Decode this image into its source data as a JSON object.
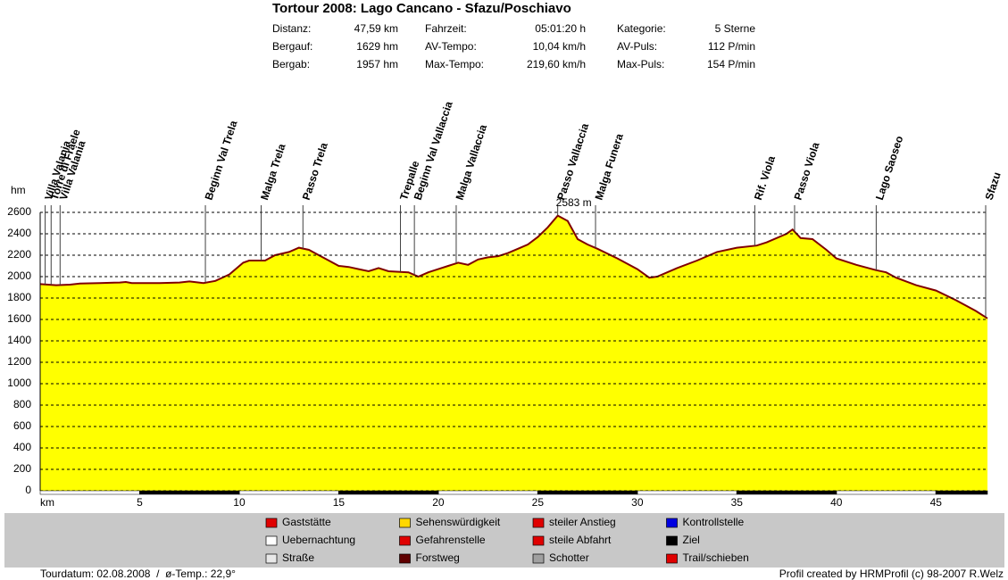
{
  "header": {
    "title": "Tortour 2008: Lago Cancano - Sfazu/Poschiavo",
    "stats": [
      {
        "label": "Distanz:",
        "value": "47,59 km"
      },
      {
        "label": "Fahrzeit:",
        "value": "05:01:20 h"
      },
      {
        "label": "Kategorie:",
        "value": "5 Sterne"
      },
      {
        "label": "Bergauf:",
        "value": "1629 hm"
      },
      {
        "label": "AV-Tempo:",
        "value": "10,04 km/h"
      },
      {
        "label": "AV-Puls:",
        "value": "112 P/min"
      },
      {
        "label": "Bergab:",
        "value": "1957 hm"
      },
      {
        "label": "Max-Tempo:",
        "value": "219,60 km/h"
      },
      {
        "label": "Max-Puls:",
        "value": "154 P/min"
      }
    ]
  },
  "chart_data": {
    "type": "area",
    "xlabel": "km",
    "ylabel": "hm",
    "x": [
      0,
      0.8,
      1.5,
      2,
      3,
      4,
      4.3,
      4.6,
      6,
      7,
      7.5,
      8.2,
      8.8,
      9.5,
      10.2,
      10.5,
      11.3,
      11.8,
      12.5,
      13,
      13.5,
      14,
      14.5,
      15,
      15.5,
      16,
      16.5,
      17,
      17.5,
      18.5,
      19,
      19.5,
      20,
      20.5,
      21,
      21.5,
      22,
      22.5,
      23,
      23.5,
      24,
      24.5,
      25,
      25.5,
      26,
      26.5,
      27,
      27.5,
      28,
      29,
      30,
      30.6,
      31,
      32,
      33,
      34,
      35,
      36,
      36.5,
      37.5,
      37.8,
      38.2,
      38.8,
      39.5,
      40,
      41,
      42,
      42.5,
      43,
      44,
      45,
      46,
      47,
      47.59
    ],
    "values": [
      1930,
      1920,
      1925,
      1935,
      1940,
      1945,
      1950,
      1940,
      1940,
      1945,
      1955,
      1940,
      1960,
      2020,
      2130,
      2150,
      2150,
      2200,
      2230,
      2270,
      2250,
      2200,
      2150,
      2100,
      2090,
      2070,
      2050,
      2080,
      2050,
      2040,
      2000,
      2040,
      2070,
      2100,
      2130,
      2110,
      2160,
      2180,
      2190,
      2220,
      2260,
      2300,
      2370,
      2460,
      2570,
      2520,
      2350,
      2300,
      2260,
      2170,
      2070,
      1990,
      2000,
      2080,
      2150,
      2230,
      2270,
      2290,
      2320,
      2400,
      2440,
      2360,
      2350,
      2250,
      2170,
      2110,
      2060,
      2040,
      1990,
      1920,
      1870,
      1780,
      1680,
      1610
    ],
    "color": "#ffff00",
    "line_color": "#800000",
    "xlim": [
      0,
      47.59
    ],
    "ylim": [
      0,
      2600
    ],
    "xticks": [
      5,
      10,
      15,
      20,
      25,
      30,
      35,
      40,
      45
    ],
    "yticks": [
      0,
      200,
      400,
      600,
      800,
      1000,
      1200,
      1400,
      1600,
      1800,
      2000,
      2200,
      2400,
      2600
    ],
    "grid": true,
    "annotations": [
      {
        "x": 26,
        "value": 2583,
        "label": "2583 m",
        "color": "#e00000"
      }
    ],
    "waypoints": [
      {
        "label": "Villa Valania",
        "x": 0.25
      },
      {
        "label": "Torre di Fraele",
        "x": 0.55
      },
      {
        "label": "Villa Valania",
        "x": 1.0
      },
      {
        "label": "Beginn Val Trela",
        "x": 8.3
      },
      {
        "label": "Malga Trela",
        "x": 11.1
      },
      {
        "label": "Passo Trela",
        "x": 13.2
      },
      {
        "label": "Trepalle",
        "x": 18.1
      },
      {
        "label": "Beginn Val Vallaccia",
        "x": 18.8
      },
      {
        "label": "Malga Vallaccia",
        "x": 20.9
      },
      {
        "label": "Passo Vallaccia",
        "x": 26.0
      },
      {
        "label": "Malga Funera",
        "x": 27.9
      },
      {
        "label": "Rif. Viola",
        "x": 35.9
      },
      {
        "label": "Passo Viola",
        "x": 37.9
      },
      {
        "label": "Lago Saoseo",
        "x": 42.0
      },
      {
        "label": "Sfazu",
        "x": 47.5
      }
    ]
  },
  "legend": [
    {
      "label": "Gaststätte",
      "color": "#e00000"
    },
    {
      "label": "Sehenswürdigkeit",
      "color": "#ffd800"
    },
    {
      "label": "steiler Anstieg",
      "color": "#e00000"
    },
    {
      "label": "Kontrollstelle",
      "color": "#0000e0"
    },
    {
      "label": "Uebernachtung",
      "color": "#ffffff"
    },
    {
      "label": "Gefahrenstelle",
      "color": "#e00000"
    },
    {
      "label": "steile Abfahrt",
      "color": "#e00000"
    },
    {
      "label": "Ziel",
      "color": "#000000"
    },
    {
      "label": "Straße",
      "color": "#e8e8e8"
    },
    {
      "label": "Forstweg",
      "color": "#600000"
    },
    {
      "label": "Schotter",
      "color": "#a0a0a0"
    },
    {
      "label": "Trail/schieben",
      "color": "#e00000"
    }
  ],
  "footer": {
    "left": "Tourdatum: 02.08.2008  /  ø-Temp.: 22,9°",
    "right": "Profil created by HRMProfil (c) 98-2007 R.Welz"
  }
}
